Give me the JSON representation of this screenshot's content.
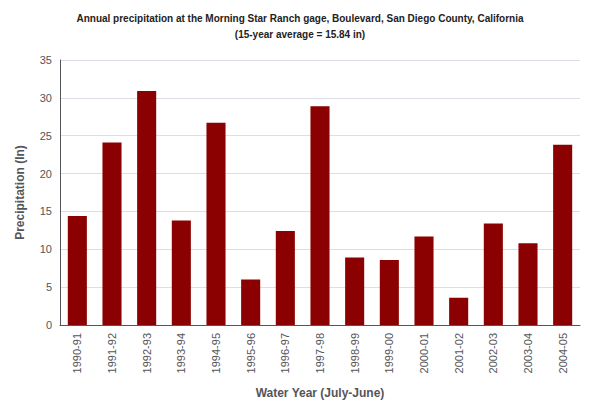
{
  "chart_data": {
    "type": "bar",
    "title": "Annual precipitation at the Morning Star Ranch gage, Boulevard, San Diego County, California",
    "subtitle": "(15-year average = 15.84 in)",
    "xlabel": "Water Year (July-June)",
    "ylabel": "Precipitation (In)",
    "categories": [
      "1990-91",
      "1991-92",
      "1992-93",
      "1993-94",
      "1994-95",
      "1995-96",
      "1996-97",
      "1997-98",
      "1998-99",
      "1999-00",
      "2000-01",
      "2001-02",
      "2002-03",
      "2003-04",
      "2004-05"
    ],
    "values": [
      14.4,
      24.1,
      30.9,
      13.8,
      26.7,
      6.0,
      12.4,
      28.9,
      8.9,
      8.6,
      11.7,
      3.6,
      13.4,
      10.8,
      23.8
    ],
    "color": "#8B0000",
    "ylim": [
      0,
      35
    ],
    "yticks": [
      0,
      5,
      10,
      15,
      20,
      25,
      30,
      35
    ],
    "grid": true
  }
}
